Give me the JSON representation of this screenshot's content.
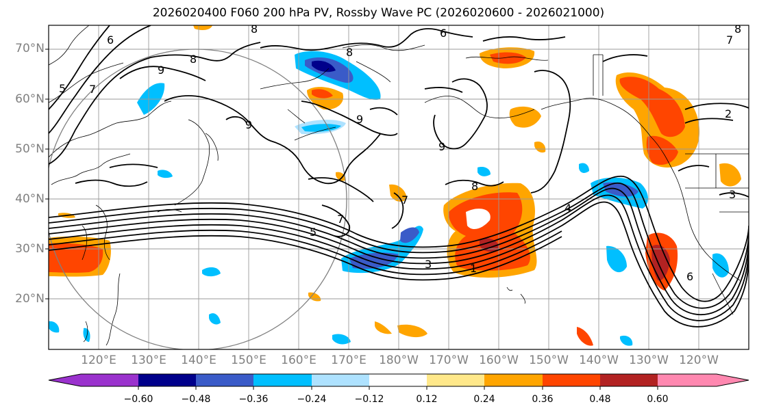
{
  "title": "2026020400 F060 200 hPa PV, Rossby Wave PC (2026020600 - 2026021000)",
  "latitude_labels": [
    "70°N",
    "60°N",
    "50°N",
    "40°N",
    "30°N",
    "20°N"
  ],
  "longitude_labels": [
    "120°E",
    "130°E",
    "140°E",
    "150°E",
    "160°E",
    "170°E",
    "180°W",
    "170°W",
    "160°W",
    "150°W",
    "140°W",
    "130°W",
    "120°W"
  ],
  "contour_labels": [
    "6",
    "8",
    "9",
    "7",
    "5",
    "8",
    "9",
    "7",
    "6",
    "8",
    "9",
    "5",
    "7",
    "1",
    "3",
    "4",
    "2",
    "6",
    "3",
    "8",
    "9",
    "8",
    "7"
  ],
  "colorbar": {
    "tick_labels": [
      "−0.60",
      "−0.48",
      "−0.36",
      "−0.24",
      "−0.12",
      "0.12",
      "0.24",
      "0.36",
      "0.48",
      "0.60"
    ],
    "colors": [
      "#9a32cd",
      "#00008b",
      "#3a5bc8",
      "#00bfff",
      "#aee2ff",
      "#ffffff",
      "#ffe88a",
      "#ffa500",
      "#ff4500",
      "#b22222",
      "#ff88b0"
    ]
  },
  "anomaly_colors": {
    "neg_strong": "#00008b",
    "neg_mid": "#3a5bc8",
    "neg": "#00bfff",
    "neg_weak": "#aee2ff",
    "pos_weak": "#ffe88a",
    "pos": "#ffa500",
    "pos_mid": "#ff4500",
    "pos_strong": "#b22222"
  }
}
